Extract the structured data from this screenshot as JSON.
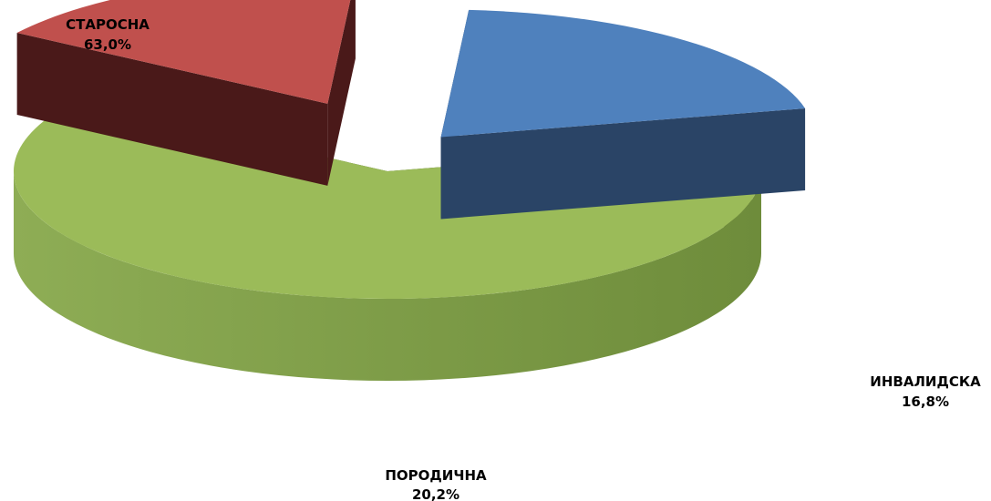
{
  "chart_data": {
    "type": "pie",
    "style": "3d-exploded",
    "categories": [
      "СТАРОСНА",
      "ИНВАЛИДСКА",
      "ПОРОДИЧНА"
    ],
    "values": [
      63.0,
      16.8,
      20.2
    ],
    "value_labels": [
      "63,0%",
      "16,8%",
      "20,2%"
    ],
    "colors": [
      "#9BBB59",
      "#C0504D",
      "#4F81BD"
    ],
    "legend": "none"
  }
}
